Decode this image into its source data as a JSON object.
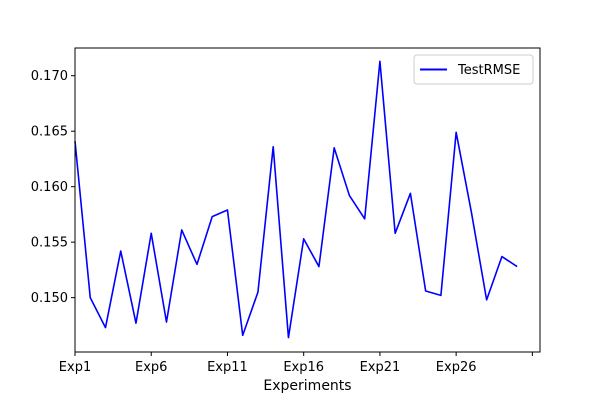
{
  "chart_data": {
    "type": "line",
    "title": "",
    "xlabel": "Experiments",
    "ylabel": "",
    "x_tick_labels": [
      "Exp1",
      "Exp6",
      "Exp11",
      "Exp16",
      "Exp21",
      "Exp26",
      ""
    ],
    "y_tick_labels": [
      "0.150",
      "0.155",
      "0.160",
      "0.165",
      "0.170"
    ],
    "y_ticks": [
      0.15,
      0.155,
      0.16,
      0.165,
      0.17
    ],
    "ylim": [
      0.1451,
      0.1725
    ],
    "xlim": [
      0,
      30.5
    ],
    "grid": false,
    "legend_position": "top-right",
    "series": [
      {
        "name": "TestRMSE",
        "color": "#0000ff",
        "values": [
          0.1641,
          0.15,
          0.1473,
          0.1542,
          0.1477,
          0.1558,
          0.1478,
          0.1561,
          0.153,
          0.1573,
          0.1579,
          0.1466,
          0.1505,
          0.1636,
          0.1464,
          0.1553,
          0.1528,
          0.1635,
          0.1592,
          0.1571,
          0.1713,
          0.1558,
          0.1594,
          0.1506,
          0.1502,
          0.1649,
          0.1577,
          0.1498,
          0.1537,
          0.1528
        ]
      }
    ]
  }
}
